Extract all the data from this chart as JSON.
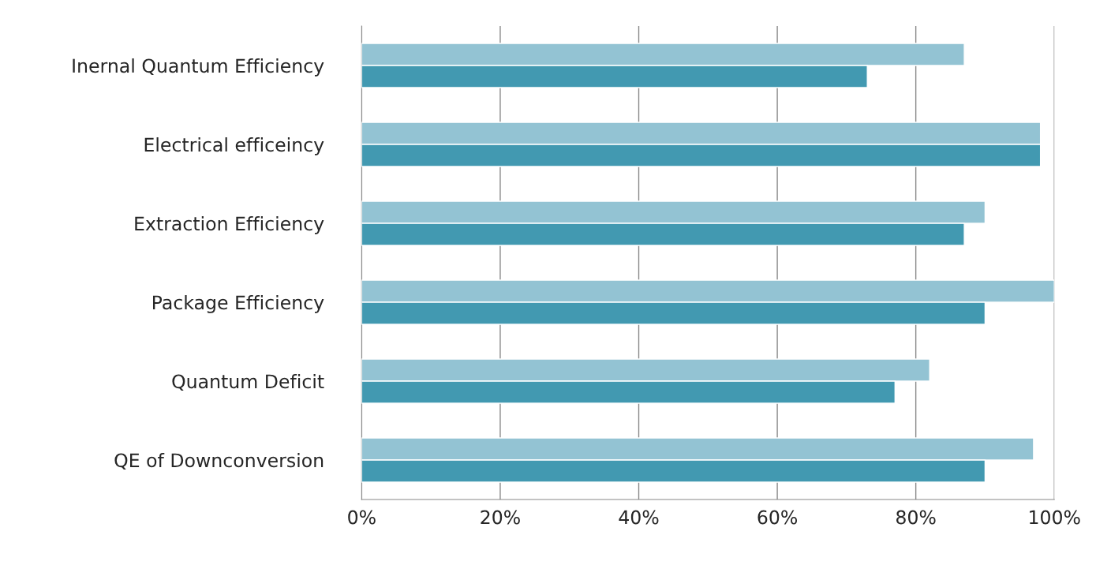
{
  "chart_data": {
    "type": "bar",
    "orientation": "horizontal",
    "categories": [
      "Inernal Quantum Efficiency",
      "Electrical efficeincy",
      "Extraction Efficiency",
      "Package Efficiency",
      "Quantum Deficit",
      "QE of Downconversion"
    ],
    "series": [
      {
        "color": "#93c3d3",
        "values": [
          87,
          98,
          90,
          100,
          82,
          97
        ]
      },
      {
        "color": "#4299b1",
        "values": [
          73,
          98,
          87,
          90,
          77,
          90
        ]
      }
    ],
    "xlim": [
      0,
      100
    ],
    "xticks": [
      {
        "value": 0,
        "label": "0%"
      },
      {
        "value": 20,
        "label": "20%"
      },
      {
        "value": 40,
        "label": "40%"
      },
      {
        "value": 60,
        "label": "60%"
      },
      {
        "value": 80,
        "label": "80%"
      },
      {
        "value": 100,
        "label": "100%"
      }
    ],
    "grid": "x",
    "legend": false
  }
}
